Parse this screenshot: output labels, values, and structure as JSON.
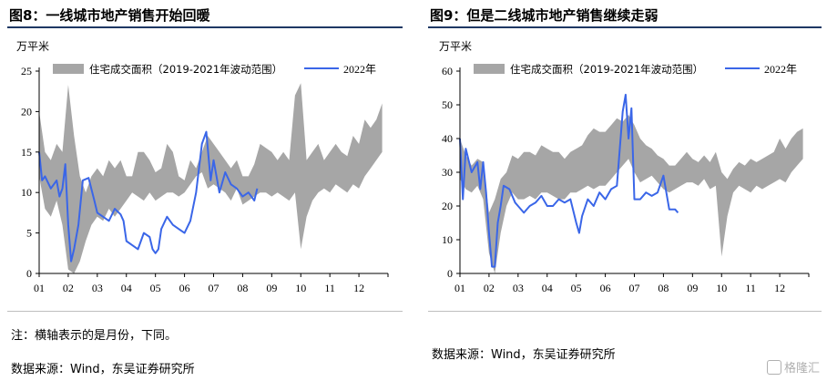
{
  "left": {
    "title": "图8：一线城市地产销售开始回暖",
    "unit": "万平米",
    "note": "注：横轴表示的是月份，下同。",
    "source": "数据来源：Wind，东吴证券研究所"
  },
  "right": {
    "title": "图9：但是二线城市地产销售继续走弱",
    "unit": "万平米",
    "source": "数据来源：Wind，东吴证券研究所"
  },
  "watermark": "格隆汇",
  "colors": {
    "band": "#a6a6a6",
    "line": "#3a66e8",
    "title_rule": "#1f3864"
  },
  "chart_data": [
    {
      "type": "area",
      "x_ticks": [
        "01",
        "02",
        "03",
        "04",
        "05",
        "06",
        "07",
        "08",
        "09",
        "10",
        "11",
        "12"
      ],
      "y_ticks": [
        "0",
        "5",
        "10",
        "15",
        "20",
        "25"
      ],
      "ylim": [
        0,
        25
      ],
      "xlim": [
        1,
        13
      ],
      "grid": false,
      "legend_position": "top",
      "series": [
        {
          "name": "住宅成交面积（2019-2021年波动范围）",
          "kind": "band",
          "x": [
            1,
            1.2,
            1.4,
            1.6,
            1.8,
            2.0,
            2.2,
            2.4,
            2.6,
            2.8,
            3.0,
            3.2,
            3.4,
            3.6,
            3.8,
            4.0,
            4.2,
            4.4,
            4.6,
            4.8,
            5.0,
            5.2,
            5.4,
            5.6,
            5.8,
            6.0,
            6.2,
            6.4,
            6.6,
            6.8,
            7.0,
            7.2,
            7.4,
            7.6,
            7.8,
            8.0,
            8.2,
            8.4,
            8.6,
            8.8,
            9.0,
            9.2,
            9.4,
            9.6,
            9.8,
            10.0,
            10.2,
            10.4,
            10.6,
            10.8,
            11.0,
            11.2,
            11.4,
            11.6,
            11.8,
            12.0,
            12.2,
            12.4,
            12.6,
            12.8
          ],
          "low": [
            12,
            8,
            7,
            9,
            6,
            0.5,
            0,
            1.5,
            4,
            6,
            7,
            6.5,
            8,
            7,
            8,
            9,
            10,
            9.5,
            9,
            10,
            9,
            9.5,
            10,
            10,
            9.5,
            10,
            11,
            12,
            12.5,
            10.5,
            11,
            10.5,
            10,
            9,
            10.5,
            8.5,
            9,
            9.5,
            10,
            10,
            9.5,
            10,
            9.5,
            9,
            10,
            3,
            7,
            9,
            10,
            10.5,
            10,
            11,
            10.5,
            10,
            11,
            10.5,
            12,
            13,
            14,
            15
          ],
          "high": [
            20,
            15,
            14,
            16,
            15,
            23.3,
            17,
            12,
            10,
            12,
            13,
            12,
            14,
            13,
            14,
            12,
            12,
            15,
            15,
            14,
            12.5,
            13,
            16,
            15,
            12,
            11.5,
            14,
            13,
            15,
            17,
            16,
            15,
            14,
            13,
            14,
            12,
            12,
            13.5,
            16,
            15.5,
            15,
            14,
            15,
            14,
            22,
            23.5,
            14,
            15,
            16,
            14,
            15,
            16,
            15,
            14.5,
            17,
            16,
            19,
            18,
            19,
            21
          ]
        },
        {
          "name": "2022年",
          "kind": "line",
          "x": [
            1.0,
            1.1,
            1.2,
            1.4,
            1.6,
            1.7,
            1.8,
            1.9,
            2.0,
            2.1,
            2.2,
            2.35,
            2.5,
            2.7,
            2.9,
            3.0,
            3.2,
            3.4,
            3.6,
            3.8,
            3.9,
            4.0,
            4.2,
            4.4,
            4.6,
            4.8,
            4.9,
            5.0,
            5.1,
            5.2,
            5.4,
            5.6,
            5.8,
            6.0,
            6.2,
            6.4,
            6.6,
            6.75,
            6.9,
            7.0,
            7.2,
            7.4,
            7.6,
            7.8,
            8.0,
            8.2,
            8.4,
            8.5
          ],
          "y": [
            15,
            11.5,
            12,
            10.5,
            11.5,
            9.5,
            10.5,
            13.5,
            6,
            1.5,
            3,
            6,
            11.5,
            11.8,
            9,
            7.5,
            7,
            6.5,
            8,
            7.3,
            6.5,
            4,
            3.5,
            3,
            5,
            4.5,
            3,
            2.5,
            3,
            5.5,
            7,
            6,
            5.5,
            5,
            6.5,
            10,
            16,
            17.5,
            11.5,
            14,
            10,
            12.5,
            11,
            10.5,
            9.5,
            10,
            9,
            10.5
          ]
        }
      ]
    },
    {
      "type": "area",
      "x_ticks": [
        "01",
        "02",
        "03",
        "04",
        "05",
        "06",
        "07",
        "08",
        "09",
        "10",
        "11",
        "12"
      ],
      "y_ticks": [
        "0",
        "10",
        "20",
        "30",
        "40",
        "50",
        "60"
      ],
      "ylim": [
        0,
        60
      ],
      "xlim": [
        1,
        13
      ],
      "grid": false,
      "legend_position": "top",
      "series": [
        {
          "name": "住宅成交面积（2019-2021年波动范围）",
          "kind": "band",
          "x": [
            1,
            1.2,
            1.4,
            1.6,
            1.8,
            2.0,
            2.2,
            2.4,
            2.6,
            2.8,
            3.0,
            3.2,
            3.4,
            3.6,
            3.8,
            4.0,
            4.2,
            4.4,
            4.6,
            4.8,
            5.0,
            5.2,
            5.4,
            5.6,
            5.8,
            6.0,
            6.2,
            6.4,
            6.6,
            6.8,
            7.0,
            7.2,
            7.4,
            7.6,
            7.8,
            8.0,
            8.2,
            8.4,
            8.6,
            8.8,
            9.0,
            9.2,
            9.4,
            9.6,
            9.8,
            10.0,
            10.2,
            10.4,
            10.6,
            10.8,
            11.0,
            11.2,
            11.4,
            11.6,
            11.8,
            12.0,
            12.2,
            12.4,
            12.6,
            12.8
          ],
          "low": [
            28,
            25,
            24,
            26,
            22,
            6,
            0,
            12,
            20,
            24,
            22,
            22,
            23,
            22,
            24,
            24,
            23,
            22,
            22,
            24,
            24,
            25,
            26,
            25,
            26,
            26,
            28,
            30,
            32,
            34,
            30,
            27,
            28,
            29,
            27,
            25,
            24,
            25,
            26,
            27,
            27,
            26,
            28,
            25,
            26,
            5,
            17,
            24,
            26,
            25,
            24,
            26,
            25,
            26,
            27,
            28,
            27,
            30,
            32,
            34
          ],
          "high": [
            40,
            35,
            32,
            34,
            33,
            18,
            22,
            28,
            30,
            35,
            34,
            36,
            36,
            35,
            38,
            37,
            36,
            36,
            34,
            36,
            37,
            38,
            41,
            43,
            42,
            42,
            44,
            46,
            45,
            47,
            44,
            40,
            38,
            37,
            35,
            34,
            32,
            32,
            34,
            36,
            34,
            33,
            35,
            33,
            36,
            30,
            28,
            31,
            33,
            32,
            34,
            33,
            34,
            35,
            36,
            40,
            37,
            40,
            42,
            43
          ]
        },
        {
          "name": "2022年",
          "kind": "line",
          "x": [
            1.0,
            1.1,
            1.2,
            1.4,
            1.6,
            1.7,
            1.8,
            1.9,
            2.0,
            2.1,
            2.2,
            2.3,
            2.4,
            2.5,
            2.7,
            2.9,
            3.0,
            3.2,
            3.4,
            3.6,
            3.8,
            4.0,
            4.2,
            4.4,
            4.6,
            4.8,
            5.0,
            5.1,
            5.2,
            5.4,
            5.6,
            5.8,
            6.0,
            6.2,
            6.4,
            6.6,
            6.7,
            6.8,
            6.9,
            7.0,
            7.2,
            7.4,
            7.6,
            7.8,
            8.0,
            8.2,
            8.4,
            8.5
          ],
          "y": [
            40,
            22,
            37,
            30,
            33,
            25,
            33,
            24,
            12,
            2,
            2,
            15,
            20,
            26,
            25,
            21,
            20,
            18,
            20,
            21,
            23,
            20,
            20,
            22,
            21,
            22,
            15,
            12,
            17,
            22,
            20,
            24,
            22,
            25,
            26,
            48,
            53,
            40,
            49,
            22,
            22,
            24,
            23,
            24,
            29,
            19,
            19,
            18
          ]
        }
      ]
    }
  ]
}
